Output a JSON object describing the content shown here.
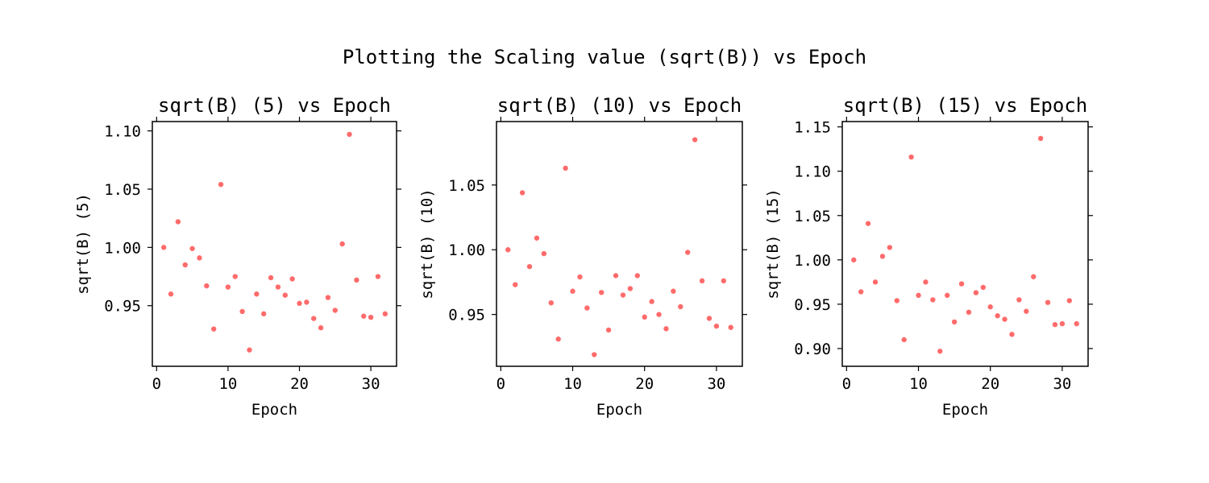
{
  "figure": {
    "suptitle": "Plotting the Scaling value (sqrt(B)) vs Epoch"
  },
  "colors": {
    "marker": "#ff6b6b",
    "axes": "#000000",
    "background": "#ffffff"
  },
  "chart_data": [
    {
      "type": "scatter",
      "title": "sqrt(B) (5) vs Epoch",
      "xlabel": "Epoch",
      "ylabel": "sqrt(B) (5)",
      "xlim": [
        -0.6,
        33.6
      ],
      "ylim": [
        0.898,
        1.108
      ],
      "xticks": [
        0,
        10,
        20,
        30
      ],
      "yticks": [
        0.95,
        1.0,
        1.05,
        1.1
      ],
      "ytick_labels": [
        "0.95",
        "1.00",
        "1.05",
        "1.10"
      ],
      "x": [
        1,
        2,
        3,
        4,
        5,
        6,
        7,
        8,
        9,
        10,
        11,
        12,
        13,
        14,
        15,
        16,
        17,
        18,
        19,
        20,
        21,
        22,
        23,
        24,
        25,
        26,
        27,
        28,
        29,
        30,
        31,
        32
      ],
      "y": [
        1.0,
        0.96,
        1.022,
        0.985,
        0.999,
        0.991,
        0.967,
        0.93,
        1.054,
        0.966,
        0.975,
        0.945,
        0.912,
        0.96,
        0.943,
        0.974,
        0.966,
        0.959,
        0.973,
        0.952,
        0.953,
        0.939,
        0.931,
        0.957,
        0.946,
        1.003,
        1.097,
        0.972,
        0.941,
        0.94,
        0.975,
        0.943
      ]
    },
    {
      "type": "scatter",
      "title": "sqrt(B) (10) vs Epoch",
      "xlabel": "Epoch",
      "ylabel": "sqrt(B) (10)",
      "xlim": [
        -0.6,
        33.6
      ],
      "ylim": [
        0.91,
        1.099
      ],
      "xticks": [
        0,
        10,
        20,
        30
      ],
      "yticks": [
        0.95,
        1.0,
        1.05
      ],
      "ytick_labels": [
        "0.95",
        "1.00",
        "1.05"
      ],
      "x": [
        1,
        2,
        3,
        4,
        5,
        6,
        7,
        8,
        9,
        10,
        11,
        12,
        13,
        14,
        15,
        16,
        17,
        18,
        19,
        20,
        21,
        22,
        23,
        24,
        25,
        26,
        27,
        28,
        29,
        30,
        31,
        32
      ],
      "y": [
        1.0,
        0.973,
        1.044,
        0.987,
        1.009,
        0.997,
        0.959,
        0.931,
        1.063,
        0.968,
        0.979,
        0.955,
        0.919,
        0.967,
        0.938,
        0.98,
        0.965,
        0.97,
        0.98,
        0.948,
        0.96,
        0.95,
        0.939,
        0.968,
        0.956,
        0.998,
        1.085,
        0.976,
        0.947,
        0.941,
        0.976,
        0.94
      ]
    },
    {
      "type": "scatter",
      "title": "sqrt(B) (15) vs Epoch",
      "xlabel": "Epoch",
      "ylabel": "sqrt(B) (15)",
      "xlim": [
        -0.6,
        33.6
      ],
      "ylim": [
        0.88,
        1.156
      ],
      "xticks": [
        0,
        10,
        20,
        30
      ],
      "yticks": [
        0.9,
        0.95,
        1.0,
        1.05,
        1.1,
        1.15
      ],
      "ytick_labels": [
        "0.90",
        "0.95",
        "1.00",
        "1.05",
        "1.10",
        "1.15"
      ],
      "x": [
        1,
        2,
        3,
        4,
        5,
        6,
        7,
        8,
        9,
        10,
        11,
        12,
        13,
        14,
        15,
        16,
        17,
        18,
        19,
        20,
        21,
        22,
        23,
        24,
        25,
        26,
        27,
        28,
        29,
        30,
        31,
        32
      ],
      "y": [
        1.0,
        0.964,
        1.041,
        0.975,
        1.004,
        1.014,
        0.954,
        0.91,
        1.116,
        0.96,
        0.975,
        0.955,
        0.897,
        0.96,
        0.93,
        0.973,
        0.941,
        0.963,
        0.969,
        0.947,
        0.937,
        0.933,
        0.916,
        0.955,
        0.942,
        0.981,
        1.137,
        0.952,
        0.927,
        0.928,
        0.954,
        0.928
      ]
    }
  ]
}
